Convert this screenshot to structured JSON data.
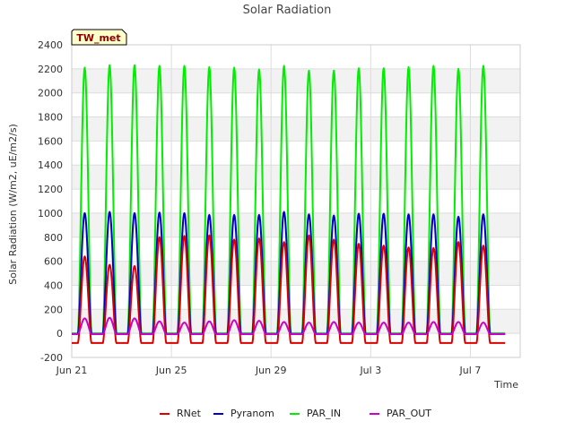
{
  "chart_data": {
    "type": "line",
    "title": "Solar Radiation",
    "xlabel": "Time",
    "ylabel": "Solar Radiation (W/m2, uE/m2/s)",
    "badge": "TW_met",
    "ylim": [
      -200,
      2400
    ],
    "yticks": [
      -200,
      0,
      200,
      400,
      600,
      800,
      1000,
      1200,
      1400,
      1600,
      1800,
      2000,
      2200,
      2400
    ],
    "xlim": [
      "2023-06-21",
      "2023-07-09"
    ],
    "xticks": [
      {
        "date": "2023-06-21",
        "label": "Jun 21"
      },
      {
        "date": "2023-06-25",
        "label": "Jun 25"
      },
      {
        "date": "2023-06-29",
        "label": "Jun 29"
      },
      {
        "date": "2023-07-03",
        "label": "Jul 3"
      },
      {
        "date": "2023-07-07",
        "label": "Jul 7"
      }
    ],
    "grid": true,
    "legend_position": "bottom",
    "days": [
      "2023-06-21",
      "2023-06-22",
      "2023-06-23",
      "2023-06-24",
      "2023-06-25",
      "2023-06-26",
      "2023-06-27",
      "2023-06-28",
      "2023-06-29",
      "2023-06-30",
      "2023-07-01",
      "2023-07-02",
      "2023-07-03",
      "2023-07-04",
      "2023-07-05",
      "2023-07-06",
      "2023-07-07",
      "2023-07-08"
    ],
    "series": [
      {
        "name": "RNet",
        "color": "#dd0000",
        "daily_peak": [
          640,
          570,
          560,
          800,
          810,
          815,
          780,
          790,
          760,
          815,
          780,
          745,
          730,
          715,
          710,
          760,
          730,
          0
        ],
        "night_value": -80
      },
      {
        "name": "Pyranom",
        "color": "#0000cc",
        "daily_peak": [
          1000,
          1010,
          1000,
          1005,
          1000,
          985,
          985,
          985,
          1010,
          990,
          980,
          995,
          995,
          990,
          990,
          970,
          990,
          0
        ],
        "night_value": -5
      },
      {
        "name": "PAR_IN",
        "color": "#00ee00",
        "daily_peak": [
          2210,
          2230,
          2230,
          2225,
          2225,
          2215,
          2210,
          2195,
          2225,
          2185,
          2185,
          2205,
          2205,
          2215,
          2225,
          2200,
          2225,
          0
        ],
        "night_value": 0
      },
      {
        "name": "PAR_OUT",
        "color": "#cc00cc",
        "daily_peak": [
          125,
          130,
          125,
          100,
          90,
          100,
          110,
          105,
          95,
          90,
          95,
          90,
          90,
          90,
          95,
          95,
          90,
          0
        ],
        "night_value": -5
      }
    ]
  }
}
